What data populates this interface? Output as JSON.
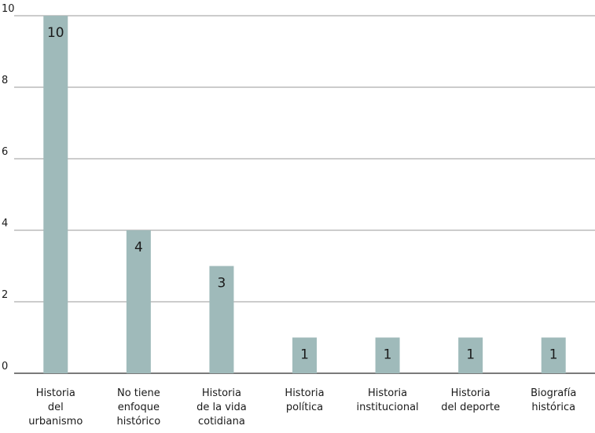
{
  "chart_data": {
    "type": "bar",
    "categories": [
      "Historia del urbanismo",
      "No tiene enfoque histórico",
      "Historia de la vida cotidiana",
      "Historia política",
      "Historia institucional",
      "Historia del deporte",
      "Biografía histórica"
    ],
    "category_label_lines": [
      [
        "Historia",
        "del",
        "urbanismo"
      ],
      [
        "No tiene",
        "enfoque",
        "histórico"
      ],
      [
        "Historia",
        "de la vida",
        "cotidiana"
      ],
      [
        "Historia",
        "política"
      ],
      [
        "Historia",
        "institucional"
      ],
      [
        "Historia",
        "del deporte"
      ],
      [
        "Biografía",
        "histórica"
      ]
    ],
    "values": [
      10,
      4,
      3,
      1,
      1,
      1,
      1
    ],
    "data_labels": [
      "10",
      "4",
      "3",
      "1",
      "1",
      "1",
      "1"
    ],
    "title": "",
    "xlabel": "",
    "ylabel": "",
    "ylim": [
      0,
      10
    ],
    "yticks": [
      0,
      2,
      4,
      6,
      8,
      10
    ],
    "grid": true,
    "bar_color": "#9fbaba"
  }
}
